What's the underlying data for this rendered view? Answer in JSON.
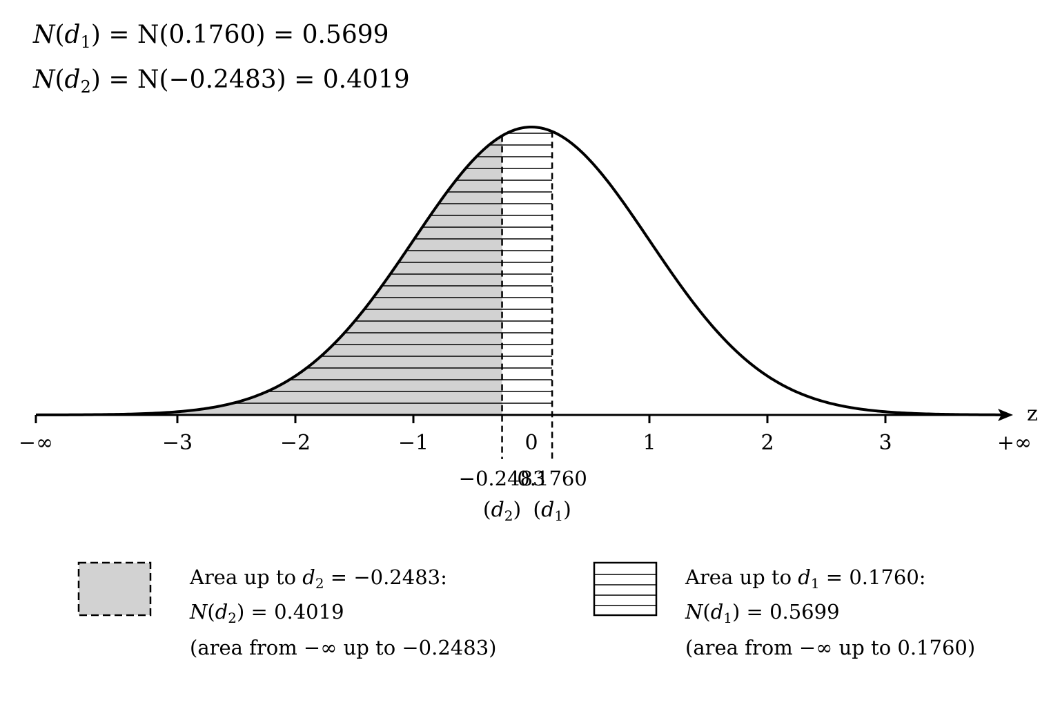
{
  "header": {
    "eq1": {
      "lhs": "N",
      "arg_sym": "d",
      "arg_sub": "1",
      "rest": " = N(0.1760) = 0.5699"
    },
    "eq2": {
      "lhs": "N",
      "arg_sym": "d",
      "arg_sub": "2",
      "rest": " = N(−0.2483) = 0.4019"
    }
  },
  "chart_data": {
    "type": "area",
    "distribution": "standard normal density",
    "xlabel": "z",
    "x_tick_labels": [
      "−∞",
      "−3",
      "−2",
      "−1",
      "0",
      "1",
      "2",
      "3",
      "+∞"
    ],
    "x_ticks": [
      -3,
      -2,
      -1,
      0,
      1,
      2,
      3
    ],
    "xlim": [
      -4.3,
      4.3
    ],
    "grid": false,
    "markers": [
      {
        "value": -0.2483,
        "label": "−0.2483",
        "sub_label": "(d2)",
        "sub_sym": "d",
        "sub_idx": "2"
      },
      {
        "value": 0.176,
        "label": "0.1760",
        "sub_label": "(d1)",
        "sub_sym": "d",
        "sub_idx": "1"
      }
    ],
    "shaded_regions": [
      {
        "from": "-inf",
        "to": -0.2483,
        "fill": "gray",
        "area": 0.4019
      },
      {
        "from": "-inf",
        "to": 0.176,
        "fill": "horizontal-hatch",
        "area": 0.5699
      }
    ],
    "legend_placement": "bottom",
    "legend": [
      {
        "swatch": "gray-dashed",
        "line1_pre": "Area up to ",
        "line1_sym": "d",
        "line1_sub": "2",
        "line1_post": " = −0.2483:",
        "line2_pre": "N(",
        "line2_sym": "d",
        "line2_sub": "2",
        "line2_post": ") = 0.4019",
        "line3": "(area from −∞ up to −0.2483)"
      },
      {
        "swatch": "hatched",
        "line1_pre": "Area up to ",
        "line1_sym": "d",
        "line1_sub": "1",
        "line1_post": " = 0.1760:",
        "line2_pre": "N(",
        "line2_sym": "d",
        "line2_sub": "1",
        "line2_post": ") = 0.5699",
        "line3": "(area from −∞ up to 0.1760)"
      }
    ]
  },
  "colors": {
    "gray_fill": "#d2d2d2",
    "ink": "#000000",
    "background": "#ffffff"
  }
}
